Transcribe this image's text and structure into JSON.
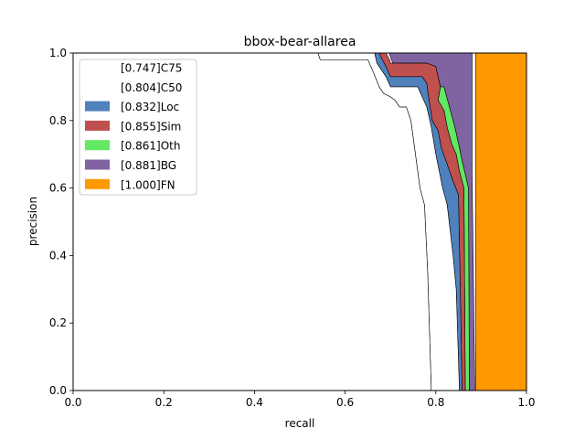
{
  "chart_data": {
    "type": "area",
    "title": "bbox-bear-allarea",
    "xlabel": "recall",
    "ylabel": "precision",
    "xlim": [
      0,
      1
    ],
    "ylim": [
      0,
      1
    ],
    "xticks": [
      "0.0",
      "0.2",
      "0.4",
      "0.6",
      "0.8",
      "1.0"
    ],
    "yticks": [
      "0.0",
      "0.2",
      "0.4",
      "0.6",
      "0.8",
      "1.0"
    ],
    "grid": false,
    "legend_position": "top-left",
    "series": [
      {
        "name": "[1.000]FN",
        "color": "#ff9900",
        "points": [
          [
            0.888,
            0
          ],
          [
            0.888,
            1.0
          ],
          [
            1.0,
            1.0
          ],
          [
            1.0,
            0
          ]
        ]
      },
      {
        "name": "[0.881]BG",
        "color": "#8064a2",
        "points": [
          [
            0.697,
            1.0
          ],
          [
            0.75,
            1.0
          ],
          [
            0.88,
            1.0
          ],
          [
            0.88,
            0.8
          ],
          [
            0.88,
            0.64
          ],
          [
            0.886,
            0.0
          ],
          [
            0.874,
            0.0
          ],
          [
            0.872,
            0.6
          ],
          [
            0.858,
            0.68
          ],
          [
            0.852,
            0.72
          ],
          [
            0.842,
            0.78
          ],
          [
            0.832,
            0.83
          ],
          [
            0.818,
            0.9
          ],
          [
            0.81,
            0.9
          ],
          [
            0.8,
            0.96
          ],
          [
            0.78,
            0.97
          ],
          [
            0.73,
            0.97
          ],
          [
            0.705,
            0.97
          ]
        ]
      },
      {
        "name": "[0.861]Oth",
        "color": "#62e862",
        "points": [
          [
            0.81,
            0.9
          ],
          [
            0.818,
            0.9
          ],
          [
            0.832,
            0.83
          ],
          [
            0.842,
            0.78
          ],
          [
            0.852,
            0.72
          ],
          [
            0.858,
            0.68
          ],
          [
            0.872,
            0.6
          ],
          [
            0.874,
            0.0
          ],
          [
            0.865,
            0.0
          ],
          [
            0.862,
            0.6
          ],
          [
            0.852,
            0.65
          ],
          [
            0.845,
            0.7
          ],
          [
            0.835,
            0.73
          ],
          [
            0.825,
            0.78
          ],
          [
            0.818,
            0.83
          ],
          [
            0.805,
            0.86
          ]
        ]
      },
      {
        "name": "[0.855]Sim",
        "color": "#c0504d",
        "points": [
          [
            0.69,
            1.0
          ],
          [
            0.698,
            0.98
          ],
          [
            0.7,
            0.97
          ],
          [
            0.78,
            0.97
          ],
          [
            0.8,
            0.96
          ],
          [
            0.81,
            0.9
          ],
          [
            0.805,
            0.86
          ],
          [
            0.818,
            0.83
          ],
          [
            0.825,
            0.78
          ],
          [
            0.835,
            0.73
          ],
          [
            0.845,
            0.7
          ],
          [
            0.852,
            0.65
          ],
          [
            0.862,
            0.6
          ],
          [
            0.865,
            0.0
          ],
          [
            0.858,
            0.0
          ],
          [
            0.85,
            0.58
          ],
          [
            0.838,
            0.62
          ],
          [
            0.825,
            0.67
          ],
          [
            0.812,
            0.72
          ],
          [
            0.805,
            0.77
          ],
          [
            0.792,
            0.8
          ],
          [
            0.785,
            0.86
          ],
          [
            0.78,
            0.91
          ],
          [
            0.77,
            0.93
          ],
          [
            0.7,
            0.93
          ],
          [
            0.69,
            0.96
          ],
          [
            0.682,
            0.98
          ],
          [
            0.675,
            1.0
          ]
        ]
      },
      {
        "name": "[0.832]Loc",
        "color": "#4f81bd",
        "points": [
          [
            0.665,
            1.0
          ],
          [
            0.675,
            1.0
          ],
          [
            0.682,
            0.98
          ],
          [
            0.69,
            0.96
          ],
          [
            0.7,
            0.93
          ],
          [
            0.77,
            0.93
          ],
          [
            0.78,
            0.91
          ],
          [
            0.785,
            0.86
          ],
          [
            0.792,
            0.8
          ],
          [
            0.805,
            0.77
          ],
          [
            0.812,
            0.72
          ],
          [
            0.825,
            0.67
          ],
          [
            0.838,
            0.62
          ],
          [
            0.85,
            0.58
          ],
          [
            0.858,
            0.0
          ],
          [
            0.852,
            0.0
          ],
          [
            0.845,
            0.3
          ],
          [
            0.838,
            0.4
          ],
          [
            0.825,
            0.55
          ],
          [
            0.815,
            0.6
          ],
          [
            0.8,
            0.7
          ],
          [
            0.79,
            0.78
          ],
          [
            0.78,
            0.84
          ],
          [
            0.77,
            0.87
          ],
          [
            0.76,
            0.9
          ],
          [
            0.7,
            0.9
          ],
          [
            0.69,
            0.93
          ],
          [
            0.68,
            0.95
          ],
          [
            0.67,
            0.97
          ]
        ]
      },
      {
        "name": "[0.804]C50",
        "color": "#ffffff",
        "points": [
          [
            0.54,
            1.0
          ],
          [
            0.665,
            1.0
          ],
          [
            0.67,
            0.97
          ],
          [
            0.68,
            0.95
          ],
          [
            0.69,
            0.93
          ],
          [
            0.7,
            0.9
          ],
          [
            0.76,
            0.9
          ],
          [
            0.77,
            0.87
          ],
          [
            0.78,
            0.84
          ],
          [
            0.79,
            0.78
          ],
          [
            0.8,
            0.7
          ],
          [
            0.815,
            0.6
          ],
          [
            0.825,
            0.55
          ],
          [
            0.838,
            0.4
          ],
          [
            0.845,
            0.3
          ],
          [
            0.852,
            0.0
          ],
          [
            0.79,
            0.0
          ],
          [
            0.782,
            0.35
          ],
          [
            0.775,
            0.55
          ],
          [
            0.765,
            0.6
          ],
          [
            0.755,
            0.7
          ],
          [
            0.745,
            0.8
          ],
          [
            0.735,
            0.84
          ],
          [
            0.72,
            0.84
          ],
          [
            0.71,
            0.86
          ],
          [
            0.7,
            0.87
          ],
          [
            0.685,
            0.88
          ],
          [
            0.675,
            0.9
          ],
          [
            0.66,
            0.95
          ],
          [
            0.65,
            0.98
          ],
          [
            0.545,
            0.98
          ]
        ]
      },
      {
        "name": "[0.747]C75",
        "color": "#ffffff",
        "points": [
          [
            0,
            0
          ],
          [
            0,
            1.0
          ],
          [
            0.54,
            1.0
          ],
          [
            0.545,
            0.98
          ],
          [
            0.65,
            0.98
          ],
          [
            0.66,
            0.95
          ],
          [
            0.675,
            0.9
          ],
          [
            0.685,
            0.88
          ],
          [
            0.7,
            0.87
          ],
          [
            0.71,
            0.86
          ],
          [
            0.72,
            0.84
          ],
          [
            0.735,
            0.84
          ],
          [
            0.745,
            0.8
          ],
          [
            0.755,
            0.7
          ],
          [
            0.765,
            0.6
          ],
          [
            0.775,
            0.55
          ],
          [
            0.782,
            0.35
          ],
          [
            0.79,
            0.0
          ]
        ]
      }
    ]
  }
}
